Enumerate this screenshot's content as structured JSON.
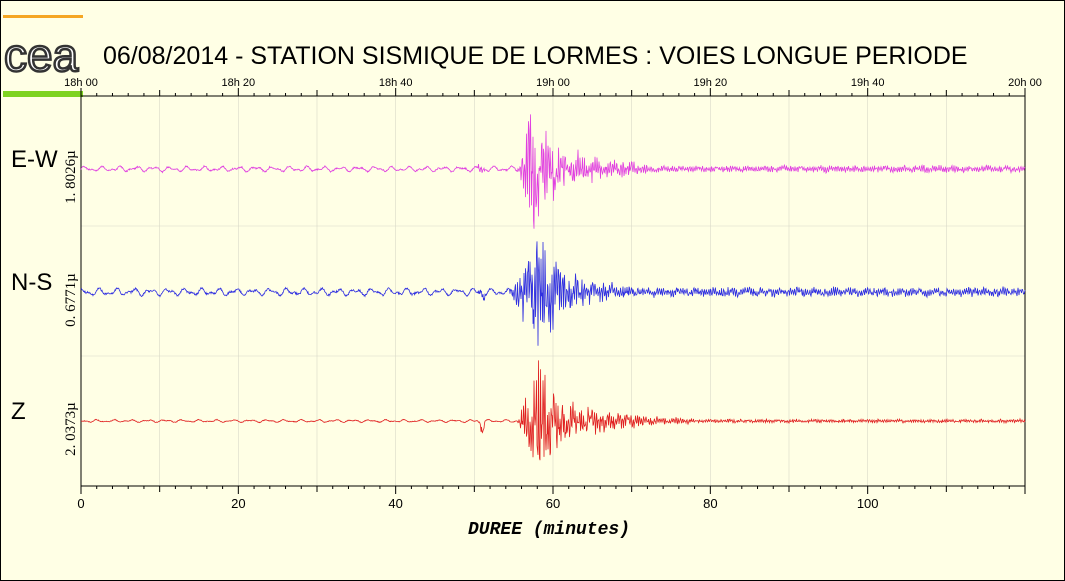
{
  "title": "06/08/2014  -  STATION SISMIQUE DE LORMES : VOIES LONGUE PERIODE",
  "logo_text": "cea",
  "colors": {
    "background": "#ffffe5",
    "logo_top_bar": "#f5a623",
    "logo_bottom_bar": "#7ed321",
    "grid": "#d8d8c8"
  },
  "chart_data": {
    "type": "line",
    "xlabel": "DUREE (minutes)",
    "xlim": [
      0,
      120
    ],
    "x_ticks": [
      0,
      20,
      40,
      60,
      80,
      100
    ],
    "time_ticks": [
      "18h 00",
      "18h 20",
      "18h 40",
      "19h 00",
      "19h 20",
      "19h 40",
      "20h 00"
    ],
    "grid": true,
    "series": [
      {
        "name": "E-W",
        "scale_label": "1. 8026µ",
        "color": "#e040e0",
        "baseline_level": 0.25,
        "event_onsets_minutes": [
          50.5,
          55.5
        ],
        "peak_minute": 57.5,
        "coda_end_minute": 72
      },
      {
        "name": "N-S",
        "scale_label": "0. 6771µ",
        "color": "#3030e0",
        "baseline_level": 0.45,
        "event_onsets_minutes": [
          50.5,
          54.5
        ],
        "peak_minute": 58,
        "coda_end_minute": 75
      },
      {
        "name": "Z",
        "scale_label": "2. 0373µ",
        "color": "#e02020",
        "baseline_level": 0.05,
        "event_onsets_minutes": [
          50.5,
          55.5
        ],
        "peak_minute": 58,
        "coda_end_minute": 78
      }
    ]
  }
}
